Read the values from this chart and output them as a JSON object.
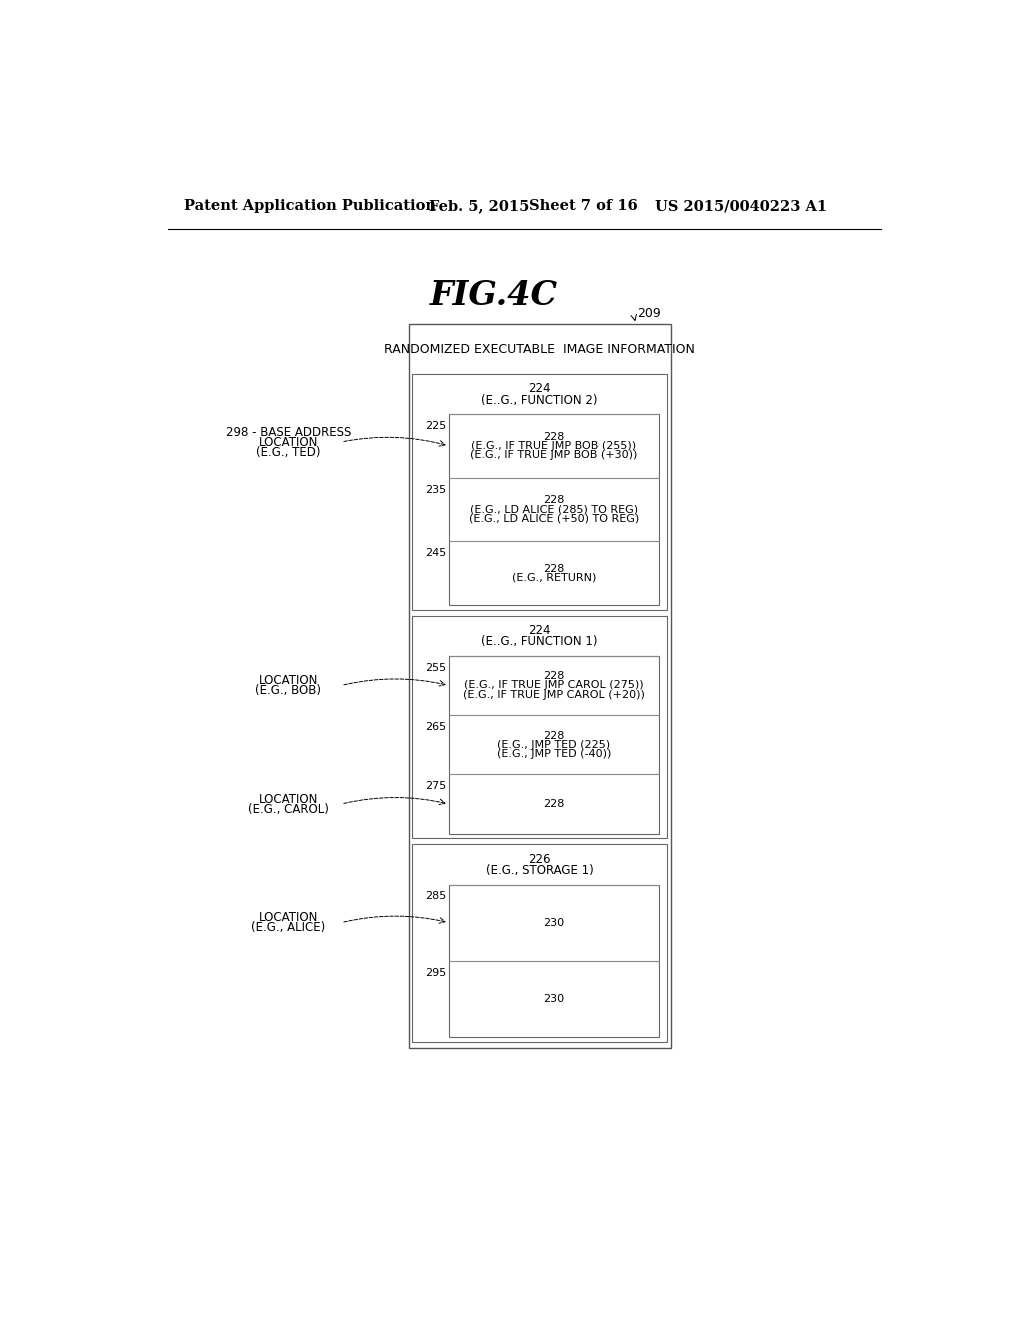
{
  "header_left": "Patent Application Publication",
  "header_date": "Feb. 5, 2015",
  "header_sheet": "Sheet 7 of 16",
  "header_patent": "US 2015/0040223 A1",
  "fig_title": "FIG.4C",
  "outer_box_label": "209",
  "main_title": "RANDOMIZED EXECUTABLE  IMAGE INFORMATION",
  "bg_color": "#ffffff",
  "sections": [
    {
      "id": "func2",
      "header_num": "224",
      "header_sub": "(E..G., FUNCTION 2)",
      "rows": [
        {
          "label": "225",
          "content_lines": [
            "228",
            "(E.G., IF TRUE JMP BOB (255))",
            "(E.G., IF TRUE JMP BOB (+30))"
          ]
        },
        {
          "label": "235",
          "content_lines": [
            "228",
            "(E.G., LD ALICE (285) TO REG)",
            "(E.G., LD ALICE (+50) TO REG)"
          ]
        },
        {
          "label": "245",
          "content_lines": [
            "228",
            "(E.G., RETURN)"
          ]
        }
      ]
    },
    {
      "id": "func1",
      "header_num": "224",
      "header_sub": "(E..G., FUNCTION 1)",
      "rows": [
        {
          "label": "255",
          "content_lines": [
            "228",
            "(E.G., IF TRUE JMP CAROL (275))",
            "(E.G., IF TRUE JMP CAROL (+20))"
          ]
        },
        {
          "label": "265",
          "content_lines": [
            "228",
            "(E.G., JMP TED (225)",
            "(E.G., JMP TED (-40))"
          ]
        },
        {
          "label": "275",
          "content_lines": [
            "228"
          ]
        }
      ]
    },
    {
      "id": "storage1",
      "header_num": "226",
      "header_sub": "(E.G., STORAGE 1)",
      "rows": [
        {
          "label": "285",
          "content_lines": [
            "230"
          ]
        },
        {
          "label": "295",
          "content_lines": [
            "230"
          ]
        }
      ]
    }
  ],
  "arrow_labels": [
    {
      "lines": [
        "298 - BASE ADDRESS",
        "LOCATION",
        "(E.G., TED)"
      ],
      "section_idx": 0,
      "row_idx": 0
    },
    {
      "lines": [
        "LOCATION",
        "(E.G., BOB)"
      ],
      "section_idx": 1,
      "row_idx": 0
    },
    {
      "lines": [
        "LOCATION",
        "(E.G., CAROL)"
      ],
      "section_idx": 1,
      "row_idx": 2
    },
    {
      "lines": [
        "LOCATION",
        "(E.G., ALICE)"
      ],
      "section_idx": 2,
      "row_idx": 0
    }
  ]
}
